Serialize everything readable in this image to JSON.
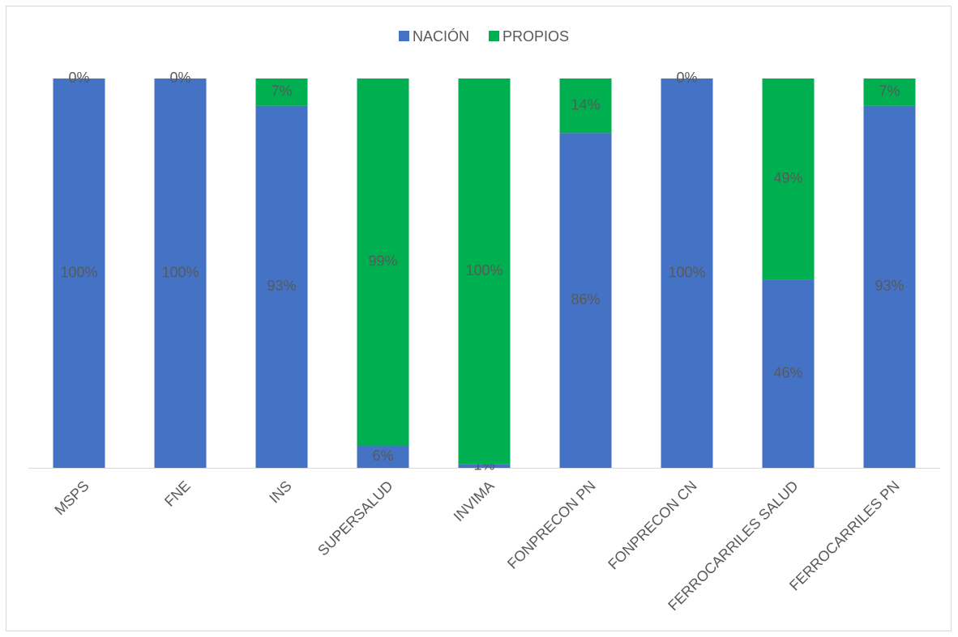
{
  "chart_data": {
    "type": "bar",
    "stacking": "percent",
    "categories": [
      "MSPS",
      "FNE",
      "INS",
      "SUPERSALUD",
      "INVIMA",
      "FONPRECON PN",
      "FONPRECON CN",
      "FERROCARRILES SALUD",
      "FERROCARRILES PN"
    ],
    "series": [
      {
        "name": "NACIÓN",
        "color": "#4472c4",
        "values": [
          100,
          100,
          93,
          6,
          1,
          86,
          100,
          46,
          93
        ],
        "value_labels": [
          "100%",
          "100%",
          "93%",
          "6%",
          "1%",
          "86%",
          "100%",
          "46%",
          "93%"
        ]
      },
      {
        "name": "PROPIOS",
        "color": "#00b050",
        "values": [
          0,
          0,
          7,
          99,
          100,
          14,
          0,
          49,
          7
        ],
        "value_labels": [
          "0%",
          "0%",
          "7%",
          "99%",
          "100%",
          "14%",
          "0%",
          "49%",
          "7%"
        ]
      }
    ],
    "legend": "top"
  }
}
